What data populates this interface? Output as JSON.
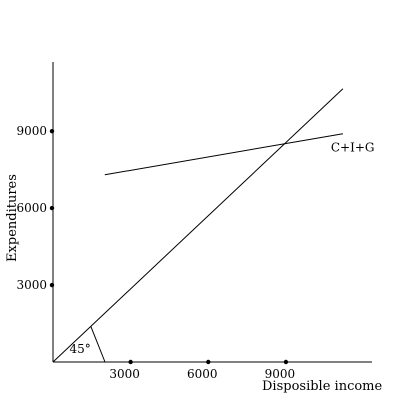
{
  "chart_data": {
    "type": "line",
    "xlabel": "Disposible income",
    "ylabel": "Expenditures",
    "xlim": [
      0,
      12500
    ],
    "ylim": [
      0,
      11000
    ],
    "x_ticks": [
      3000,
      6000,
      9000
    ],
    "y_ticks": [
      3000,
      6000,
      9000
    ],
    "series": [
      {
        "name": "",
        "x": [
          0,
          11200
        ],
        "y": [
          0,
          10650
        ]
      },
      {
        "name": "C+I+G",
        "x": [
          2000,
          11200
        ],
        "y": [
          7300,
          8900
        ]
      }
    ],
    "annotations": [
      {
        "text": "45°",
        "x": 1050,
        "y": 350
      }
    ],
    "grid": false,
    "colors": {
      "line": "#000000",
      "background": "#ffffff"
    }
  }
}
